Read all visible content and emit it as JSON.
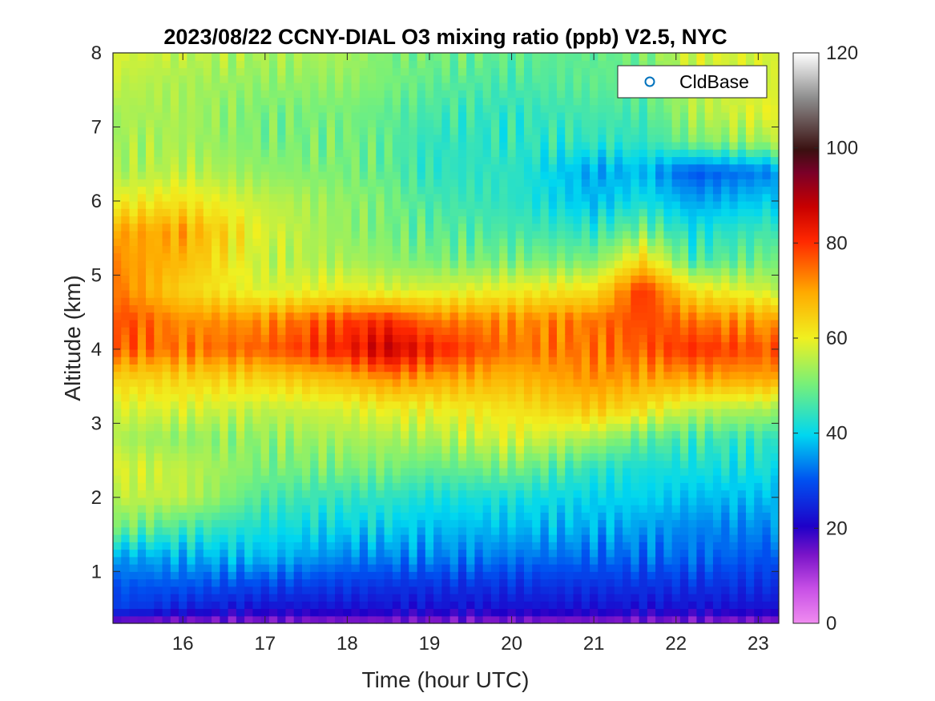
{
  "chart_data": {
    "type": "heatmap",
    "title": "2023/08/22 CCNY-DIAL O3 mixing ratio (ppb) V2.5, NYC",
    "xlabel": "Time (hour UTC)",
    "ylabel": "Altitude (km)",
    "xlim": [
      15.15,
      23.25
    ],
    "ylim": [
      0.3,
      8.0
    ],
    "x_ticks": [
      "16",
      "17",
      "18",
      "19",
      "20",
      "21",
      "22",
      "23"
    ],
    "y_ticks": [
      "1",
      "2",
      "3",
      "4",
      "5",
      "6",
      "7",
      "8"
    ],
    "colorbar": {
      "min": 0,
      "max": 120,
      "ticks": [
        "0",
        "20",
        "40",
        "60",
        "80",
        "100",
        "120"
      ]
    },
    "legend": {
      "label": "CldBase",
      "marker": "open-circle",
      "placement": "top-right",
      "color": "#0072BD"
    },
    "grid": false,
    "time_step_hours": 0.1,
    "altitude_step_km": 0.1,
    "profile_knots": {
      "altitudes": [
        0.3,
        0.5,
        0.8,
        1.2,
        1.6,
        2.0,
        2.4,
        2.8,
        3.2,
        3.6,
        4.0,
        4.4,
        4.8,
        5.2,
        5.6,
        6.0,
        6.4,
        6.8,
        7.2,
        7.6,
        8.0
      ],
      "profiles": [
        {
          "time": 15.2,
          "o3": [
            12,
            28,
            30,
            36,
            50,
            56,
            58,
            54,
            58,
            64,
            76,
            78,
            74,
            72,
            70,
            60,
            54,
            54,
            54,
            56,
            58
          ]
        },
        {
          "time": 16.0,
          "o3": [
            12,
            24,
            30,
            37,
            46,
            56,
            56,
            52,
            58,
            64,
            74,
            72,
            64,
            68,
            70,
            62,
            56,
            54,
            54,
            54,
            56
          ]
        },
        {
          "time": 17.0,
          "o3": [
            12,
            22,
            28,
            38,
            42,
            46,
            50,
            52,
            56,
            64,
            76,
            72,
            58,
            56,
            58,
            56,
            52,
            50,
            50,
            52,
            54
          ]
        },
        {
          "time": 18.0,
          "o3": [
            12,
            22,
            27,
            34,
            40,
            44,
            50,
            54,
            58,
            68,
            82,
            78,
            60,
            54,
            52,
            52,
            50,
            50,
            50,
            52,
            54
          ]
        },
        {
          "time": 18.5,
          "o3": [
            12,
            22,
            26,
            34,
            40,
            44,
            50,
            54,
            60,
            72,
            88,
            80,
            58,
            52,
            50,
            50,
            48,
            48,
            48,
            50,
            50
          ]
        },
        {
          "time": 19.0,
          "o3": [
            12,
            22,
            26,
            34,
            38,
            42,
            48,
            54,
            60,
            70,
            82,
            74,
            58,
            50,
            48,
            46,
            44,
            44,
            46,
            48,
            50
          ]
        },
        {
          "time": 20.0,
          "o3": [
            12,
            22,
            26,
            33,
            38,
            42,
            50,
            58,
            62,
            68,
            74,
            72,
            60,
            50,
            46,
            44,
            44,
            44,
            44,
            46,
            48
          ]
        },
        {
          "time": 21.0,
          "o3": [
            12,
            22,
            26,
            32,
            37,
            40,
            44,
            54,
            66,
            72,
            74,
            74,
            62,
            50,
            44,
            38,
            36,
            44,
            46,
            48,
            48
          ]
        },
        {
          "time": 21.6,
          "o3": [
            12,
            22,
            26,
            32,
            36,
            40,
            42,
            48,
            62,
            70,
            76,
            78,
            80,
            64,
            50,
            42,
            38,
            44,
            46,
            48,
            50
          ]
        },
        {
          "time": 22.2,
          "o3": [
            12,
            22,
            26,
            32,
            34,
            38,
            42,
            46,
            56,
            70,
            80,
            74,
            62,
            46,
            42,
            36,
            30,
            50,
            54,
            56,
            58
          ]
        },
        {
          "time": 23.25,
          "o3": [
            12,
            22,
            26,
            30,
            34,
            38,
            42,
            44,
            54,
            70,
            76,
            70,
            56,
            50,
            46,
            40,
            34,
            54,
            60,
            58,
            58
          ]
        }
      ]
    }
  }
}
